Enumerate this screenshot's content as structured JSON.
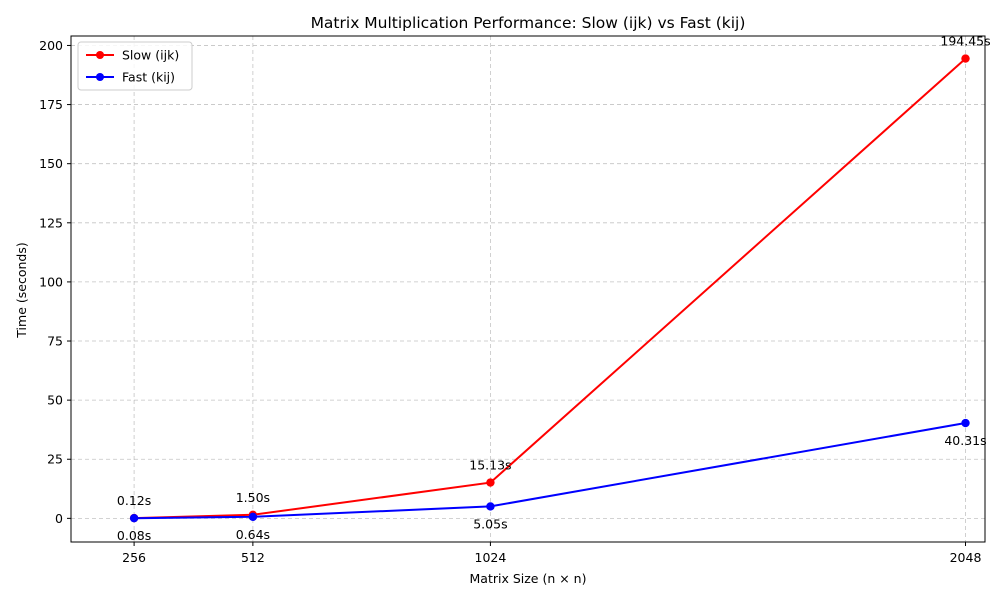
{
  "chart_data": {
    "type": "line",
    "title": "Matrix Multiplication Performance: Slow (ijk) vs Fast (kij)",
    "xlabel": "Matrix Size (n × n)",
    "ylabel": "Time (seconds)",
    "x": [
      256,
      512,
      1024,
      2048
    ],
    "xticks": [
      256,
      512,
      1024,
      2048
    ],
    "yticks": [
      0,
      25,
      50,
      75,
      100,
      125,
      150,
      175,
      200
    ],
    "xlim": [
      120,
      2090
    ],
    "ylim": [
      -10,
      204
    ],
    "grid": true,
    "legend_position": "top-left",
    "series": [
      {
        "name": "Slow (ijk)",
        "color": "#ff0000",
        "values": [
          0.12,
          1.5,
          15.13,
          194.45
        ],
        "labels": [
          "0.12s",
          "1.50s",
          "15.13s",
          "194.45s"
        ],
        "label_side": "above"
      },
      {
        "name": "Fast (kij)",
        "color": "#0000ff",
        "values": [
          0.08,
          0.64,
          5.05,
          40.31
        ],
        "labels": [
          "0.08s",
          "0.64s",
          "5.05s",
          "40.31s"
        ],
        "label_side": "below"
      }
    ]
  }
}
